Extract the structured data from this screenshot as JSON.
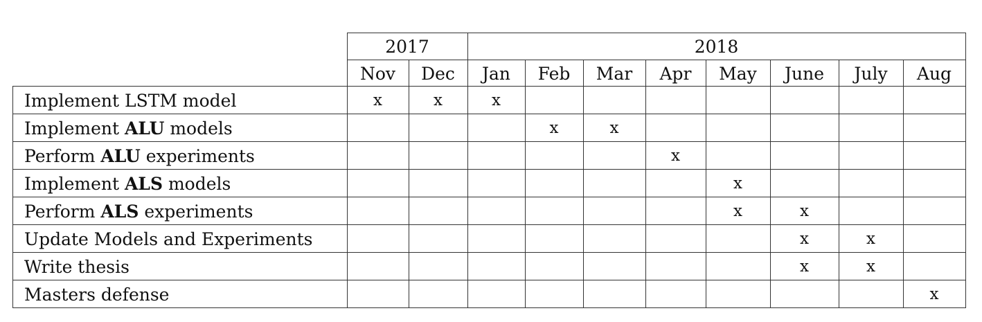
{
  "years": [
    {
      "label": "2017",
      "months": 2
    },
    {
      "label": "2018",
      "months": 8
    }
  ],
  "months": [
    "Nov",
    "Dec",
    "Jan",
    "Feb",
    "Mar",
    "Apr",
    "May",
    "June",
    "July",
    "Aug"
  ],
  "mark_symbol": "x",
  "tasks": [
    {
      "parts": [
        {
          "text": "Implement LSTM model",
          "bold": false
        }
      ],
      "marks": [
        "Nov",
        "Dec",
        "Jan"
      ]
    },
    {
      "parts": [
        {
          "text": "Implement ",
          "bold": false
        },
        {
          "text": "ALU",
          "bold": true
        },
        {
          "text": " models",
          "bold": false
        }
      ],
      "marks": [
        "Feb",
        "Mar"
      ]
    },
    {
      "parts": [
        {
          "text": "Perform ",
          "bold": false
        },
        {
          "text": "ALU",
          "bold": true
        },
        {
          "text": " experiments",
          "bold": false
        }
      ],
      "marks": [
        "Apr"
      ]
    },
    {
      "parts": [
        {
          "text": "Implement ",
          "bold": false
        },
        {
          "text": "ALS",
          "bold": true
        },
        {
          "text": " models",
          "bold": false
        }
      ],
      "marks": [
        "May"
      ]
    },
    {
      "parts": [
        {
          "text": "Perform ",
          "bold": false
        },
        {
          "text": "ALS",
          "bold": true
        },
        {
          "text": " experiments",
          "bold": false
        }
      ],
      "marks": [
        "May",
        "June"
      ]
    },
    {
      "parts": [
        {
          "text": "Update Models and Experiments",
          "bold": false
        }
      ],
      "marks": [
        "June",
        "July"
      ]
    },
    {
      "parts": [
        {
          "text": "Write thesis",
          "bold": false
        }
      ],
      "marks": [
        "June",
        "July"
      ]
    },
    {
      "parts": [
        {
          "text": "Masters defense",
          "bold": false
        }
      ],
      "marks": [
        "Aug"
      ]
    }
  ]
}
